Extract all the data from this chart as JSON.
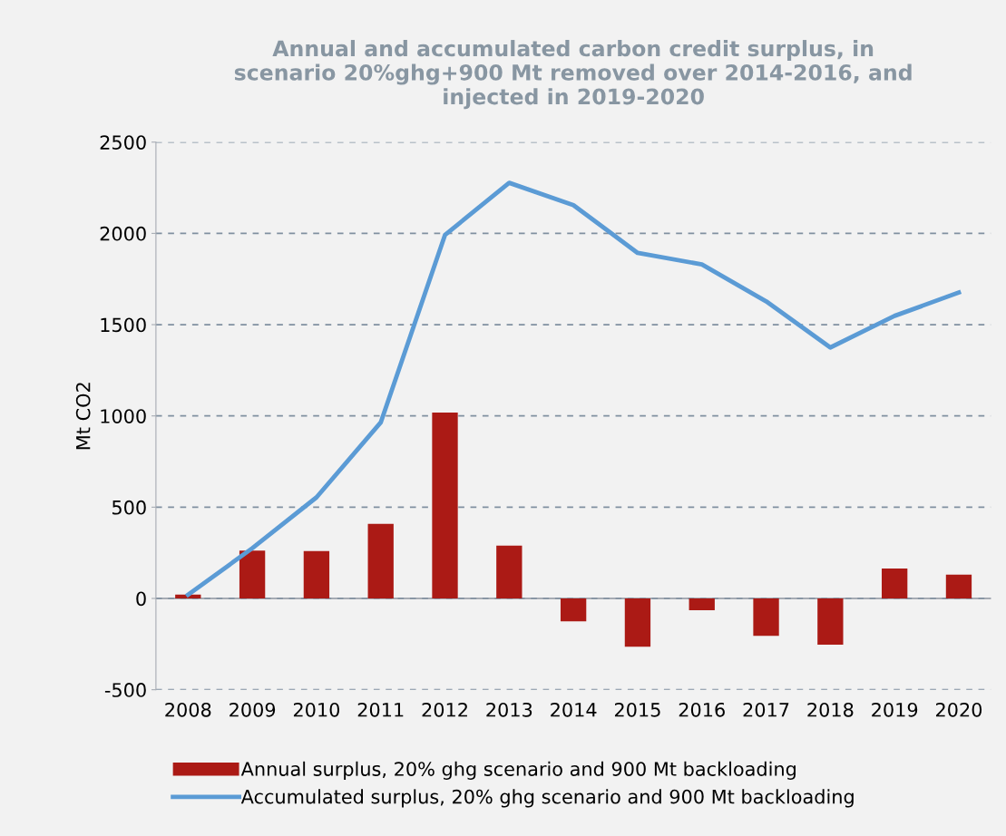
{
  "chart_data": {
    "type": "bar",
    "title": "Annual and accumulated carbon credit surplus, in\nscenario 20%ghg+900 Mt removed over 2014-2016, and\ninjected in 2019-2020",
    "ylabel": "Mt CO2",
    "categories": [
      "2008",
      "2009",
      "2010",
      "2011",
      "2012",
      "2013",
      "2014",
      "2015",
      "2016",
      "2017",
      "2018",
      "2019",
      "2020"
    ],
    "series": [
      {
        "name": "Annual surplus, 20% ghg scenario and 900 Mt backloading",
        "color": "#ab1a15",
        "values": [
          21,
          262,
          259,
          408,
          1018,
          289,
          -125,
          -265,
          -65,
          -205,
          -253,
          164,
          131
        ]
      },
      {
        "name": "Accumulated surplus, 20% ghg scenario and 900 Mt backloading",
        "type": "line",
        "color": "#5b9bd5",
        "values": [
          20,
          275,
          554,
          964,
          1991,
          2277,
          2155,
          1893,
          1830,
          1628,
          1375,
          1548,
          1676
        ]
      }
    ],
    "ylim": [
      -500,
      2500
    ],
    "yticks": [
      -500,
      0,
      500,
      1000,
      1500,
      2000,
      2500
    ],
    "grid": "y",
    "legend": "bottom",
    "marker": "none",
    "line_style": "solid"
  }
}
